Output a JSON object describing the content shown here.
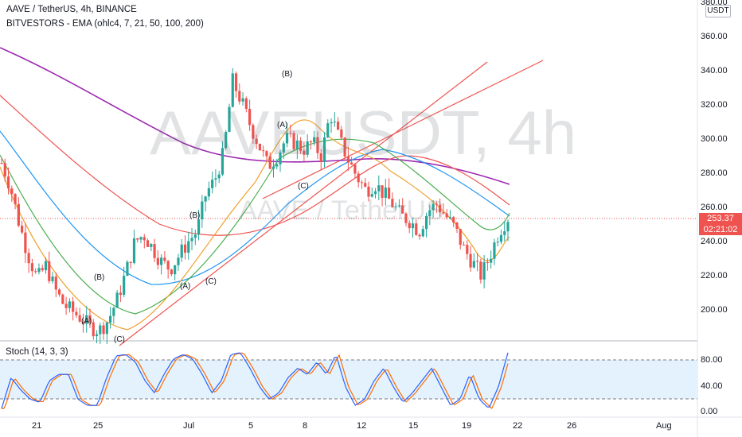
{
  "header": {
    "symbol_line": "AAVE / TetherUS, 4h, BINANCE",
    "indicator_line": "BITVESTORS - EMA (ohlc4, 7, 21, 50, 100, 200)"
  },
  "watermark": {
    "big": "AAVEUSDT, 4h",
    "small": "AAVE / TetherUS"
  },
  "currency_button": "USDT",
  "price_axis": {
    "labels": [
      "380.00",
      "360.00",
      "340.00",
      "320.00",
      "300.00",
      "280.00",
      "260.00",
      "240.00",
      "220.00",
      "200.00"
    ],
    "last_price": "253.37",
    "countdown": "02:21:02"
  },
  "stoch": {
    "label": "Stoch (14, 3, 3)",
    "axis_labels": [
      "80.00",
      "40.00",
      "0.00"
    ]
  },
  "time_axis": {
    "labels": [
      "21",
      "25",
      "Jul",
      "5",
      "8",
      "12",
      "15",
      "19",
      "22",
      "26",
      "Aug"
    ]
  },
  "wave_labels": [
    "(B)",
    "(A)",
    "(C)",
    "(B)",
    "(A)",
    "(C)",
    "(B)",
    "(A)",
    "(C)"
  ],
  "colors": {
    "up": "#26a69a",
    "down": "#ef5350",
    "ema7": "#f0a030",
    "ema21": "#4caf50",
    "ema50": "#2196f3",
    "ema100": "#ef5350",
    "ema200": "#9c27b0",
    "stoch_k": "#2962ff",
    "stoch_d": "#ff6d00",
    "stoch_band": "#e3f2fd"
  },
  "chart_data": {
    "type": "candlestick",
    "y_range": [
      180,
      380
    ],
    "stoch_range": [
      0,
      100
    ],
    "close_path": [
      286,
      272,
      250,
      232,
      218,
      226,
      212,
      203,
      199,
      195,
      190,
      188,
      194,
      206,
      222,
      240,
      244,
      236,
      228,
      224,
      232,
      240,
      246,
      268,
      276,
      292,
      334,
      322,
      308,
      296,
      284,
      290,
      300,
      298,
      294,
      298,
      290,
      315,
      300,
      288,
      278,
      270,
      274,
      268,
      262,
      255,
      252,
      246,
      258,
      262,
      255,
      248,
      236,
      228,
      220,
      232,
      246,
      254
    ],
    "stoch_path": [
      5,
      55,
      35,
      20,
      15,
      50,
      60,
      60,
      20,
      10,
      10,
      55,
      90,
      92,
      80,
      50,
      30,
      60,
      85,
      92,
      85,
      60,
      30,
      50,
      92,
      95,
      70,
      40,
      20,
      30,
      55,
      70,
      60,
      80,
      60,
      92,
      40,
      10,
      20,
      50,
      70,
      40,
      15,
      30,
      50,
      70,
      40,
      10,
      20,
      60,
      20,
      5,
      40,
      95
    ]
  }
}
